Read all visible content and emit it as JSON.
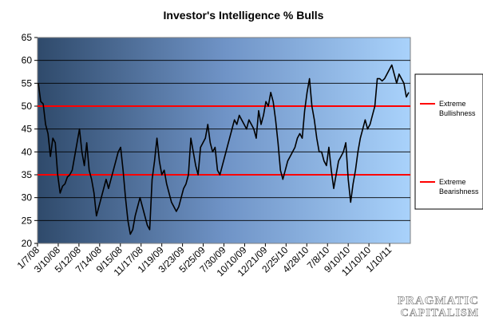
{
  "chart_data": {
    "type": "line",
    "title": "Investor's Intelligence % Bulls",
    "xlabel": "",
    "ylabel": "",
    "ylim": [
      20,
      65
    ],
    "yticks": [
      20,
      25,
      30,
      35,
      40,
      45,
      50,
      55,
      60,
      65
    ],
    "grid": "horizontal",
    "legend_position": "right",
    "background": "gradient dark-blue to light-blue",
    "xtick_labels": [
      "1/7/08",
      "3/10/08",
      "5/12/08",
      "7/14/08",
      "9/15/08",
      "11/17/08",
      "1/19/09",
      "3/23/09",
      "5/25/09",
      "7/30/09",
      "10/10/09",
      "12/21/09",
      "2/25/10",
      "4/28/10",
      "7/8/10",
      "9/10/10",
      "11/10/10",
      "1/10/11"
    ],
    "series": [
      {
        "name": "",
        "color": "#000000",
        "values": [
          55,
          51,
          50.5,
          46,
          44,
          39,
          43,
          42,
          35,
          31,
          32.5,
          33,
          34.5,
          35,
          36,
          39,
          42,
          45,
          40,
          37,
          42,
          36,
          34,
          31,
          26,
          28,
          30,
          32,
          34,
          32,
          34,
          36,
          38,
          40,
          41,
          36,
          30,
          25,
          22,
          23,
          26,
          28,
          30,
          28,
          26,
          24,
          23,
          34,
          38,
          43,
          38,
          35,
          36,
          33,
          31,
          29,
          28,
          27,
          28,
          30,
          32,
          33,
          35,
          43,
          40,
          37,
          35,
          41,
          42,
          43,
          46,
          42,
          40,
          41,
          36,
          35,
          37,
          39,
          41,
          43,
          45,
          47,
          46,
          48,
          47,
          46,
          45,
          47,
          46,
          45,
          43,
          49,
          46,
          48,
          51,
          50,
          53,
          51,
          47,
          42,
          36,
          34,
          36,
          38,
          39,
          40,
          41,
          43,
          44,
          43,
          49,
          53,
          56,
          50,
          47,
          43,
          40,
          40,
          38,
          37,
          41,
          36,
          32,
          35,
          38,
          39,
          40,
          42,
          34,
          29,
          33,
          36,
          40,
          43,
          45,
          47,
          45,
          46,
          48,
          50,
          56,
          56,
          55.5,
          56,
          57,
          58,
          59,
          57,
          55,
          57,
          56,
          55,
          52,
          53
        ]
      },
      {
        "name": "Extreme Bullishness",
        "color": "#ff0000",
        "constant": 50
      },
      {
        "name": "Extreme Bearishness",
        "color": "#ff0000",
        "constant": 35
      }
    ]
  },
  "legend": {
    "items": [
      {
        "label_line1": "Extreme",
        "label_line2": "Bullishness",
        "color": "#ff0000"
      },
      {
        "label_line1": "Extreme",
        "label_line2": "Bearishness",
        "color": "#ff0000"
      }
    ]
  },
  "watermark": {
    "line1": "PRAGMATIC",
    "line2": "CAPITALISM"
  }
}
